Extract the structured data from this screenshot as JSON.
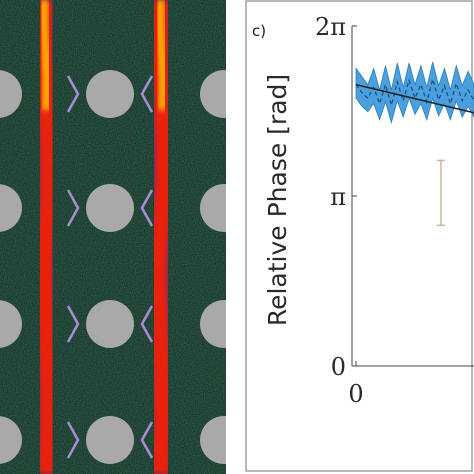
{
  "micrograph": {
    "description_icon": "fluorescence-micrograph",
    "colors": {
      "background": "#0e2418",
      "pillar": "#a9a9a9",
      "fiber_core": "#ff2a10",
      "fiber_edge": "#6a1a9a",
      "fiber_glow": "#ffd000",
      "marker": "#a98bd8"
    }
  },
  "chart_data": {
    "type": "line",
    "panel_label": "c)",
    "ylabel": "Relative Phase [rad]",
    "y_ticks": [
      "0",
      "π",
      "2π"
    ],
    "x_ticks": [
      "0"
    ],
    "ylim": [
      0,
      6.2832
    ],
    "xlim": [
      0,
      1
    ],
    "series": [
      {
        "kind": "fit-line",
        "x": [
          0.0,
          1.0
        ],
        "y": [
          5.2,
          4.68
        ]
      },
      {
        "kind": "dashed-mean",
        "x": [
          0.0,
          0.05,
          0.1,
          0.15,
          0.2,
          0.25,
          0.3,
          0.35,
          0.4,
          0.45,
          0.5,
          0.55,
          0.6,
          0.65,
          0.7,
          0.75,
          0.8,
          0.85,
          0.9,
          0.95,
          1.0
        ],
        "y": [
          5.2,
          5.05,
          4.95,
          5.15,
          4.85,
          5.2,
          4.82,
          5.25,
          4.9,
          5.28,
          4.95,
          5.2,
          4.88,
          5.3,
          4.92,
          5.18,
          4.85,
          5.22,
          4.9,
          5.1,
          4.9
        ]
      },
      {
        "kind": "band",
        "x": [
          0.0,
          0.05,
          0.1,
          0.15,
          0.2,
          0.25,
          0.3,
          0.35,
          0.4,
          0.45,
          0.5,
          0.55,
          0.6,
          0.65,
          0.7,
          0.75,
          0.8,
          0.85,
          0.9,
          0.95,
          1.0
        ],
        "upper": [
          5.5,
          5.35,
          5.2,
          5.5,
          5.1,
          5.55,
          5.1,
          5.6,
          5.15,
          5.6,
          5.2,
          5.55,
          5.15,
          5.62,
          5.18,
          5.5,
          5.1,
          5.55,
          5.18,
          5.45,
          5.2
        ],
        "lower": [
          4.95,
          4.8,
          4.7,
          4.85,
          4.55,
          4.88,
          4.5,
          4.9,
          4.6,
          4.95,
          4.65,
          4.85,
          4.55,
          4.95,
          4.62,
          4.85,
          4.55,
          4.9,
          4.6,
          4.8,
          4.6
        ]
      },
      {
        "kind": "errorbar",
        "x": [
          0.72
        ],
        "y": [
          3.2
        ],
        "err": [
          0.6
        ]
      }
    ],
    "colors": {
      "band": "#4a9fdc",
      "band_edge": "#2d7fc4",
      "mean": "#1a4f8c",
      "fit": "#222222",
      "errorbar": "#c9b79a"
    },
    "grid": false
  }
}
